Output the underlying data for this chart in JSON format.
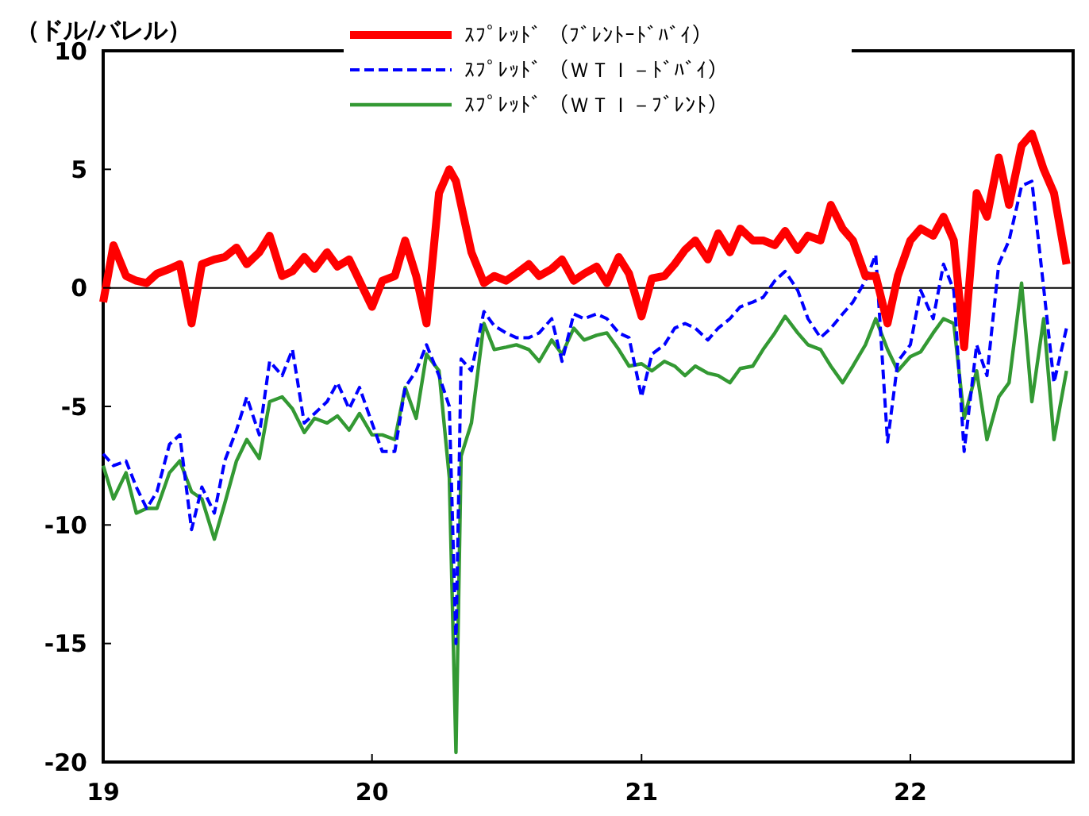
{
  "chart_data": {
    "type": "line",
    "ylabel": "（ドル/バレル）",
    "x": [
      "2019-01-01",
      "2019-01-15",
      "2019-02-01",
      "2019-02-15",
      "2019-03-01",
      "2019-03-15",
      "2019-04-01",
      "2019-04-15",
      "2019-05-01",
      "2019-05-15",
      "2019-06-01",
      "2019-06-15",
      "2019-07-01",
      "2019-07-15",
      "2019-08-01",
      "2019-08-15",
      "2019-09-01",
      "2019-09-15",
      "2019-10-01",
      "2019-10-15",
      "2019-11-01",
      "2019-11-15",
      "2019-12-01",
      "2019-12-15",
      "2020-01-01",
      "2020-01-15",
      "2020-02-01",
      "2020-02-15",
      "2020-03-01",
      "2020-03-15",
      "2020-04-01",
      "2020-04-15",
      "2020-04-24",
      "2020-05-01",
      "2020-05-15",
      "2020-06-01",
      "2020-06-15",
      "2020-07-01",
      "2020-07-15",
      "2020-08-01",
      "2020-08-15",
      "2020-09-01",
      "2020-09-15",
      "2020-10-01",
      "2020-10-15",
      "2020-11-01",
      "2020-11-15",
      "2020-12-01",
      "2020-12-15",
      "2021-01-01",
      "2021-01-15",
      "2021-02-01",
      "2021-02-15",
      "2021-03-01",
      "2021-03-15",
      "2021-04-01",
      "2021-04-15",
      "2021-05-01",
      "2021-05-15",
      "2021-06-01",
      "2021-06-15",
      "2021-07-01",
      "2021-07-15",
      "2021-08-01",
      "2021-08-15",
      "2021-09-01",
      "2021-09-15",
      "2021-10-01",
      "2021-10-15",
      "2021-11-01",
      "2021-11-15",
      "2021-12-01",
      "2021-12-15",
      "2022-01-01",
      "2022-01-15",
      "2022-02-01",
      "2022-02-15",
      "2022-03-01",
      "2022-03-15",
      "2022-04-01",
      "2022-04-15",
      "2022-05-01",
      "2022-05-15",
      "2022-06-01",
      "2022-06-15",
      "2022-07-01",
      "2022-07-15",
      "2022-08-01"
    ],
    "series": [
      {
        "name": "ｽﾌﾟﾚｯﾄﾞ （ﾌﾞﾚﾝﾄｰﾄﾞﾊﾞｲ）",
        "color": "#ff0000",
        "line_style": "solid",
        "values": [
          -0.6,
          1.8,
          0.5,
          0.3,
          0.2,
          0.6,
          0.8,
          1.0,
          -1.5,
          1.0,
          1.2,
          1.3,
          1.7,
          1.0,
          1.5,
          2.2,
          0.5,
          0.7,
          1.3,
          0.8,
          1.5,
          0.9,
          1.2,
          0.3,
          -0.8,
          0.3,
          0.5,
          2.0,
          0.5,
          -1.5,
          4.0,
          5.0,
          4.5,
          3.5,
          1.5,
          0.2,
          0.5,
          0.3,
          0.6,
          1.0,
          0.5,
          0.8,
          1.2,
          0.3,
          0.6,
          0.9,
          0.2,
          1.3,
          0.6,
          -1.2,
          0.4,
          0.5,
          1.0,
          1.6,
          2.0,
          1.2,
          2.3,
          1.5,
          2.5,
          2.0,
          2.0,
          1.8,
          2.4,
          1.6,
          2.2,
          2.0,
          3.5,
          2.5,
          2.0,
          0.5,
          0.5,
          -1.5,
          0.5,
          2.0,
          2.5,
          2.2,
          3.0,
          2.0,
          -2.5,
          4.0,
          3.0,
          5.5,
          3.5,
          6.0,
          6.5,
          5.0,
          4.0,
          1.0
        ]
      },
      {
        "name": "ｽﾌﾟﾚｯﾄﾞ （ＷＴＩ－ﾄﾞﾊﾞｲ）",
        "color": "#0000ff",
        "line_style": "dashed",
        "values": [
          -7.0,
          -7.5,
          -7.3,
          -8.4,
          -9.3,
          -8.6,
          -6.6,
          -6.2,
          -10.2,
          -8.4,
          -9.5,
          -7.3,
          -6.0,
          -4.6,
          -6.2,
          -3.1,
          -3.7,
          -2.6,
          -5.7,
          -5.3,
          -4.8,
          -4.0,
          -5.1,
          -4.2,
          -5.7,
          -6.9,
          -6.9,
          -4.2,
          -3.5,
          -2.4,
          -3.7,
          -5.0,
          -15.0,
          -3.0,
          -3.5,
          -1.0,
          -1.6,
          -1.9,
          -2.1,
          -2.1,
          -1.9,
          -1.3,
          -3.1,
          -1.1,
          -1.3,
          -1.1,
          -1.3,
          -1.9,
          -2.1,
          -4.6,
          -2.8,
          -2.4,
          -1.7,
          -1.5,
          -1.7,
          -2.2,
          -1.7,
          -1.3,
          -0.8,
          -0.6,
          -0.4,
          0.3,
          0.7,
          -0.1,
          -1.3,
          -2.1,
          -1.7,
          -1.1,
          -0.6,
          0.3,
          1.4,
          -6.5,
          -3.1,
          -2.4,
          -0.1,
          -1.3,
          1.0,
          -0.1,
          -6.9,
          -2.4,
          -3.7,
          1.0,
          2.0,
          4.3,
          4.5,
          0.0,
          -4.0,
          -1.7
        ]
      },
      {
        "name": "ｽﾌﾟﾚｯﾄﾞ （ＷＴＩ－ﾌﾞﾚﾝﾄ）",
        "color": "#339933",
        "line_style": "solid",
        "values": [
          -7.5,
          -8.9,
          -7.8,
          -9.5,
          -9.3,
          -9.3,
          -7.8,
          -7.3,
          -8.6,
          -8.9,
          -10.6,
          -9.1,
          -7.3,
          -6.4,
          -7.2,
          -4.8,
          -4.6,
          -5.1,
          -6.1,
          -5.5,
          -5.7,
          -5.4,
          -6.0,
          -5.3,
          -6.2,
          -6.2,
          -6.4,
          -4.2,
          -5.5,
          -2.8,
          -3.5,
          -8.0,
          -19.6,
          -7.1,
          -5.7,
          -1.5,
          -2.6,
          -2.5,
          -2.4,
          -2.6,
          -3.1,
          -2.2,
          -2.8,
          -1.7,
          -2.2,
          -2.0,
          -1.9,
          -2.6,
          -3.3,
          -3.2,
          -3.5,
          -3.1,
          -3.3,
          -3.7,
          -3.3,
          -3.6,
          -3.7,
          -4.0,
          -3.4,
          -3.3,
          -2.6,
          -1.9,
          -1.2,
          -1.9,
          -2.4,
          -2.6,
          -3.3,
          -4.0,
          -3.3,
          -2.4,
          -1.3,
          -2.6,
          -3.5,
          -2.9,
          -2.7,
          -1.9,
          -1.3,
          -1.5,
          -5.5,
          -3.5,
          -6.4,
          -4.6,
          -4.0,
          0.2,
          -4.8,
          -1.3,
          -6.4,
          -3.5
        ]
      }
    ],
    "xlim": [
      "2019-01-01",
      "2022-08-10"
    ],
    "xticks": [
      {
        "value": "2019-01-01",
        "label": "19"
      },
      {
        "value": "2020-01-01",
        "label": "20"
      },
      {
        "value": "2021-01-01",
        "label": "21"
      },
      {
        "value": "2022-01-01",
        "label": "22"
      }
    ],
    "ylim": [
      -20,
      10
    ],
    "yticks": [
      -20,
      -15,
      -10,
      -5,
      0,
      5,
      10
    ],
    "ref_lines": [
      {
        "axis": "y",
        "value": 0,
        "color": "#000000"
      }
    ],
    "grid": false,
    "legend": "top",
    "marker": "none"
  }
}
